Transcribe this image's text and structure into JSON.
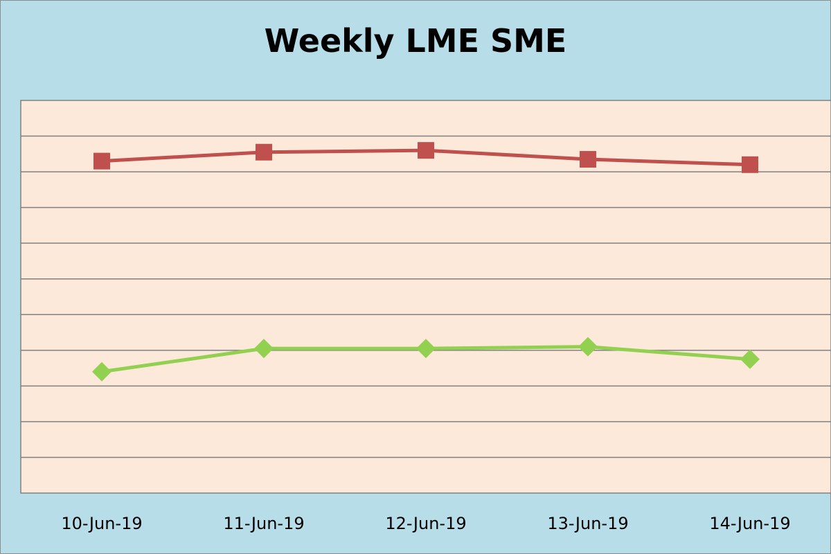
{
  "chart_data": {
    "type": "line",
    "title": "Weekly LME SME",
    "categories": [
      "10-Jun-19",
      "11-Jun-19",
      "12-Jun-19",
      "13-Jun-19",
      "14-Jun-19"
    ],
    "series": [
      {
        "values": [
          9.3,
          9.55,
          9.6,
          9.35,
          9.2
        ],
        "color": "#c0504d",
        "marker": "square"
      },
      {
        "values": [
          3.4,
          4.05,
          4.05,
          4.1,
          3.75
        ],
        "color": "#92d050",
        "marker": "diamond"
      }
    ],
    "ylim": [
      0,
      11
    ],
    "grid": true,
    "y_tick_labels_shown": false,
    "legend": "none",
    "colors": {
      "background": "#b7dde8",
      "plot_area": "#fde9d9",
      "gridline": "#808080"
    }
  }
}
